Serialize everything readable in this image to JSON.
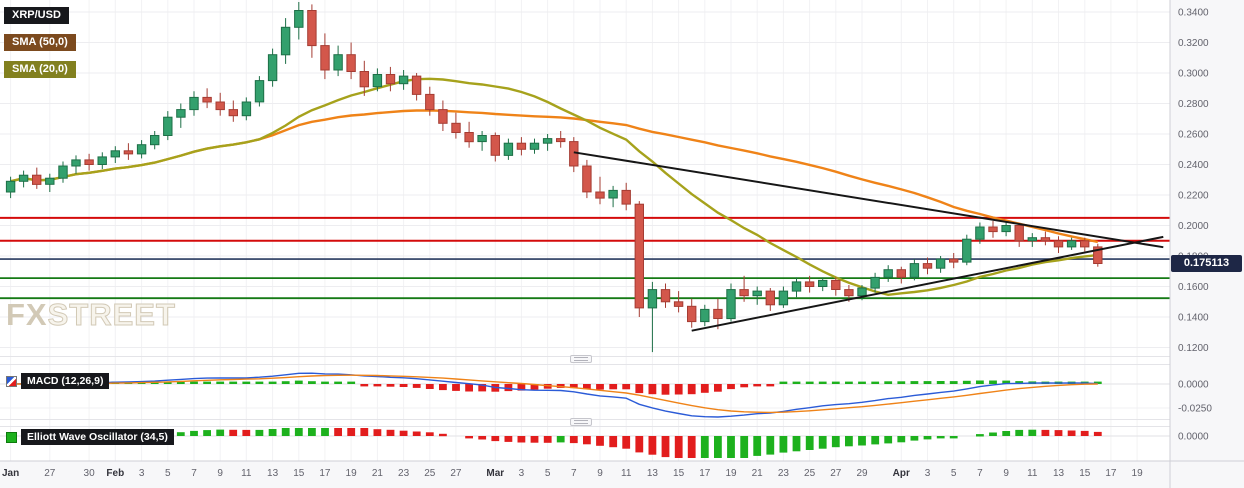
{
  "legend": {
    "symbol": "XRP/USD",
    "sma50": "SMA (50,0)",
    "sma20": "SMA (20,0)"
  },
  "panes": {
    "macd_label": "MACD (12,26,9)",
    "ewo_label": "Elliott Wave Oscillator (34,5)"
  },
  "watermark": {
    "fx": "FX",
    "street": "STREET"
  },
  "price_tag": "0.175113",
  "legend_colors": {
    "symbol_bg": "#17181c",
    "sma50_bg": "#7c4a1e",
    "sma20_bg": "#82801f",
    "pane_label_bg": "#17181c"
  },
  "chart_data": {
    "type": "candlestick",
    "symbol": "XRP/USD",
    "title": "XRP/USD daily chart with SMA(50), SMA(20), MACD and Elliott Wave Oscillator",
    "price_axis": {
      "min": 0.12,
      "max": 0.34,
      "step": 0.02
    },
    "last_price": 0.175113,
    "x_labels": [
      {
        "i": 0,
        "t": "Jan",
        "m": true
      },
      {
        "i": 3,
        "t": "27"
      },
      {
        "i": 6,
        "t": "30"
      },
      {
        "i": 8,
        "t": "Feb",
        "m": true
      },
      {
        "i": 10,
        "t": "3"
      },
      {
        "i": 12,
        "t": "5"
      },
      {
        "i": 14,
        "t": "7"
      },
      {
        "i": 16,
        "t": "9"
      },
      {
        "i": 18,
        "t": "11"
      },
      {
        "i": 20,
        "t": "13"
      },
      {
        "i": 22,
        "t": "15"
      },
      {
        "i": 24,
        "t": "17"
      },
      {
        "i": 26,
        "t": "19"
      },
      {
        "i": 28,
        "t": "21"
      },
      {
        "i": 30,
        "t": "23"
      },
      {
        "i": 32,
        "t": "25"
      },
      {
        "i": 34,
        "t": "27"
      },
      {
        "i": 37,
        "t": "Mar",
        "m": true
      },
      {
        "i": 39,
        "t": "3"
      },
      {
        "i": 41,
        "t": "5"
      },
      {
        "i": 43,
        "t": "7"
      },
      {
        "i": 45,
        "t": "9"
      },
      {
        "i": 47,
        "t": "11"
      },
      {
        "i": 49,
        "t": "13"
      },
      {
        "i": 51,
        "t": "15"
      },
      {
        "i": 53,
        "t": "17"
      },
      {
        "i": 55,
        "t": "19"
      },
      {
        "i": 57,
        "t": "21"
      },
      {
        "i": 59,
        "t": "23"
      },
      {
        "i": 61,
        "t": "25"
      },
      {
        "i": 63,
        "t": "27"
      },
      {
        "i": 65,
        "t": "29"
      },
      {
        "i": 68,
        "t": "Apr",
        "m": true
      },
      {
        "i": 70,
        "t": "3"
      },
      {
        "i": 72,
        "t": "5"
      },
      {
        "i": 74,
        "t": "7"
      },
      {
        "i": 76,
        "t": "9"
      },
      {
        "i": 78,
        "t": "11"
      },
      {
        "i": 80,
        "t": "13"
      },
      {
        "i": 82,
        "t": "15"
      },
      {
        "i": 84,
        "t": "17"
      },
      {
        "i": 86,
        "t": "19"
      }
    ],
    "candles_ohlc": [
      [
        0.222,
        0.232,
        0.218,
        0.229
      ],
      [
        0.229,
        0.236,
        0.225,
        0.233
      ],
      [
        0.233,
        0.238,
        0.224,
        0.227
      ],
      [
        0.227,
        0.234,
        0.222,
        0.231
      ],
      [
        0.231,
        0.242,
        0.228,
        0.239
      ],
      [
        0.239,
        0.246,
        0.234,
        0.243
      ],
      [
        0.243,
        0.247,
        0.236,
        0.24
      ],
      [
        0.24,
        0.248,
        0.237,
        0.245
      ],
      [
        0.245,
        0.252,
        0.241,
        0.249
      ],
      [
        0.249,
        0.254,
        0.243,
        0.247
      ],
      [
        0.247,
        0.256,
        0.244,
        0.253
      ],
      [
        0.253,
        0.262,
        0.25,
        0.259
      ],
      [
        0.259,
        0.275,
        0.256,
        0.271
      ],
      [
        0.271,
        0.28,
        0.264,
        0.276
      ],
      [
        0.276,
        0.288,
        0.272,
        0.284
      ],
      [
        0.284,
        0.29,
        0.277,
        0.281
      ],
      [
        0.281,
        0.287,
        0.272,
        0.276
      ],
      [
        0.276,
        0.282,
        0.268,
        0.272
      ],
      [
        0.272,
        0.284,
        0.269,
        0.281
      ],
      [
        0.281,
        0.298,
        0.278,
        0.295
      ],
      [
        0.295,
        0.316,
        0.291,
        0.312
      ],
      [
        0.312,
        0.336,
        0.306,
        0.33
      ],
      [
        0.33,
        0.347,
        0.322,
        0.341
      ],
      [
        0.341,
        0.345,
        0.31,
        0.318
      ],
      [
        0.318,
        0.326,
        0.296,
        0.302
      ],
      [
        0.302,
        0.318,
        0.298,
        0.312
      ],
      [
        0.312,
        0.32,
        0.296,
        0.301
      ],
      [
        0.301,
        0.308,
        0.285,
        0.291
      ],
      [
        0.291,
        0.303,
        0.288,
        0.299
      ],
      [
        0.299,
        0.304,
        0.288,
        0.293
      ],
      [
        0.293,
        0.302,
        0.289,
        0.298
      ],
      [
        0.298,
        0.3,
        0.282,
        0.286
      ],
      [
        0.286,
        0.291,
        0.272,
        0.276
      ],
      [
        0.276,
        0.282,
        0.262,
        0.267
      ],
      [
        0.267,
        0.274,
        0.257,
        0.261
      ],
      [
        0.261,
        0.268,
        0.251,
        0.255
      ],
      [
        0.255,
        0.262,
        0.249,
        0.259
      ],
      [
        0.259,
        0.261,
        0.242,
        0.246
      ],
      [
        0.246,
        0.257,
        0.243,
        0.254
      ],
      [
        0.254,
        0.258,
        0.246,
        0.25
      ],
      [
        0.25,
        0.257,
        0.247,
        0.254
      ],
      [
        0.254,
        0.26,
        0.249,
        0.257
      ],
      [
        0.257,
        0.262,
        0.251,
        0.255
      ],
      [
        0.255,
        0.258,
        0.235,
        0.239
      ],
      [
        0.239,
        0.243,
        0.218,
        0.222
      ],
      [
        0.222,
        0.232,
        0.214,
        0.218
      ],
      [
        0.218,
        0.226,
        0.212,
        0.223
      ],
      [
        0.223,
        0.228,
        0.21,
        0.214
      ],
      [
        0.214,
        0.216,
        0.14,
        0.146
      ],
      [
        0.146,
        0.163,
        0.117,
        0.158
      ],
      [
        0.158,
        0.162,
        0.146,
        0.15
      ],
      [
        0.15,
        0.157,
        0.143,
        0.147
      ],
      [
        0.147,
        0.152,
        0.133,
        0.137
      ],
      [
        0.137,
        0.148,
        0.134,
        0.145
      ],
      [
        0.145,
        0.152,
        0.132,
        0.139
      ],
      [
        0.139,
        0.162,
        0.137,
        0.158
      ],
      [
        0.158,
        0.167,
        0.15,
        0.154
      ],
      [
        0.154,
        0.16,
        0.148,
        0.157
      ],
      [
        0.157,
        0.159,
        0.144,
        0.148
      ],
      [
        0.148,
        0.16,
        0.146,
        0.157
      ],
      [
        0.157,
        0.166,
        0.153,
        0.163
      ],
      [
        0.163,
        0.167,
        0.156,
        0.16
      ],
      [
        0.16,
        0.166,
        0.157,
        0.164
      ],
      [
        0.164,
        0.166,
        0.154,
        0.158
      ],
      [
        0.158,
        0.161,
        0.15,
        0.154
      ],
      [
        0.154,
        0.161,
        0.151,
        0.159
      ],
      [
        0.159,
        0.169,
        0.156,
        0.166
      ],
      [
        0.166,
        0.174,
        0.163,
        0.171
      ],
      [
        0.171,
        0.173,
        0.162,
        0.166
      ],
      [
        0.166,
        0.178,
        0.164,
        0.175
      ],
      [
        0.175,
        0.179,
        0.168,
        0.172
      ],
      [
        0.172,
        0.18,
        0.169,
        0.178
      ],
      [
        0.178,
        0.182,
        0.172,
        0.176
      ],
      [
        0.176,
        0.194,
        0.174,
        0.191
      ],
      [
        0.191,
        0.202,
        0.188,
        0.199
      ],
      [
        0.199,
        0.203,
        0.192,
        0.196
      ],
      [
        0.196,
        0.202,
        0.193,
        0.2
      ],
      [
        0.2,
        0.201,
        0.186,
        0.19
      ],
      [
        0.19,
        0.195,
        0.186,
        0.192
      ],
      [
        0.192,
        0.196,
        0.187,
        0.19
      ],
      [
        0.19,
        0.193,
        0.182,
        0.186
      ],
      [
        0.186,
        0.192,
        0.184,
        0.19
      ],
      [
        0.19,
        0.192,
        0.183,
        0.186
      ],
      [
        0.186,
        0.188,
        0.173,
        0.1751
      ]
    ],
    "overlays": {
      "sma20_period": 20,
      "sma50_period": 50,
      "horizontal_lines": [
        {
          "price": 0.205,
          "color": "#d40b0b",
          "width": 2
        },
        {
          "price": 0.19,
          "color": "#d40b0b",
          "width": 2
        },
        {
          "price": 0.178,
          "color": "#27395f",
          "width": 1.6
        },
        {
          "price": 0.1655,
          "color": "#157a15",
          "width": 1.8
        },
        {
          "price": 0.1523,
          "color": "#157a15",
          "width": 1.8
        }
      ],
      "trend_lines": [
        {
          "i1": 43,
          "p1": 0.248,
          "i2": 88,
          "p2": 0.1858
        },
        {
          "i1": 52,
          "p1": 0.131,
          "i2": 88,
          "p2": 0.1925
        }
      ]
    },
    "macd": {
      "fast": 12,
      "slow": 26,
      "signal": 9,
      "axis": [
        {
          "t": "0.0000",
          "v": 0
        },
        {
          "t": "-0.0250",
          "v": -0.025
        }
      ]
    },
    "ewo": {
      "fast": 5,
      "slow": 34,
      "axis": [
        {
          "t": "0.0000",
          "v": 0
        }
      ]
    },
    "colors": {
      "up": "#33a06d",
      "up_border": "#1d6f47",
      "down": "#d3574b",
      "down_border": "#a53c33",
      "sma20": "#a6a21c",
      "sma50": "#ef8318",
      "trend": "#161616",
      "macd_line": "#2b5bd7",
      "macd_signal": "#ef8318",
      "hist_pos": "#1db11d",
      "hist_neg": "#e21d1d"
    }
  }
}
